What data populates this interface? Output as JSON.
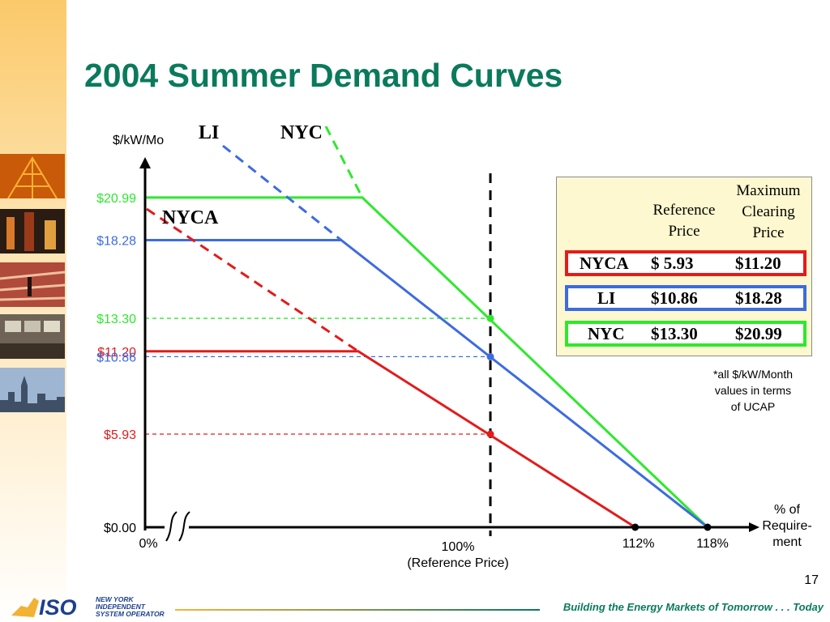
{
  "title": "2004 Summer Demand Curves",
  "page_number": "17",
  "footer": {
    "tagline": "Building the Energy Markets of Tomorrow . . . Today",
    "logo_text": "ISO",
    "logo_lines": [
      "NEW YORK",
      "INDEPENDENT",
      "SYSTEM OPERATOR"
    ]
  },
  "colors": {
    "NYCA": "#e31b1b",
    "LI": "#3d6be0",
    "NYC": "#2ee82e",
    "title": "#0a7a5c"
  },
  "chart_data": {
    "type": "line",
    "ylabel": "$/kW/Mo",
    "xlabel": "% of Require-ment",
    "xlabel_lines": [
      "% of",
      "Require-",
      "ment"
    ],
    "x_ticks": [
      {
        "x": 0,
        "label": "0%"
      },
      {
        "x": 100,
        "label": "100%"
      },
      {
        "x": 112,
        "label": "112%"
      },
      {
        "x": 118,
        "label": "118%"
      }
    ],
    "reference_line": {
      "x": 100,
      "caption": "(Reference Price)"
    },
    "y_ticks": [
      {
        "value": 20.99,
        "label": "$20.99",
        "series": "NYC"
      },
      {
        "value": 18.28,
        "label": "$18.28",
        "series": "LI"
      },
      {
        "value": 13.3,
        "label": "$13.30",
        "series": "NYC"
      },
      {
        "value": 11.2,
        "label": "$11.20",
        "series": "NYCA"
      },
      {
        "value": 10.86,
        "label": "$10.86",
        "series": "LI"
      },
      {
        "value": 5.93,
        "label": "$5.93",
        "series": "NYCA"
      },
      {
        "value": 0.0,
        "label": "$0.00",
        "series": null
      }
    ],
    "series": [
      {
        "name": "NYC",
        "cap": 20.99,
        "ref": 13.3,
        "zero_x": 118
      },
      {
        "name": "LI",
        "cap": 18.28,
        "ref": 10.86,
        "zero_x": 118
      },
      {
        "name": "NYCA",
        "cap": 11.2,
        "ref": 5.93,
        "zero_x": 112
      }
    ],
    "notes": [
      "all $/kW/Month values in terms of UCAP"
    ]
  },
  "table": {
    "headers": {
      "reference": [
        "Reference",
        "Price"
      ],
      "maximum": [
        "Maximum",
        "Clearing",
        "Price"
      ]
    },
    "rows": [
      {
        "zone": "NYCA",
        "reference": "$  5.93",
        "maximum": "$11.20"
      },
      {
        "zone": "LI",
        "reference": "$10.86",
        "maximum": "$18.28"
      },
      {
        "zone": "NYC",
        "reference": "$13.30",
        "maximum": "$20.99"
      }
    ]
  },
  "note_lines": [
    "*all $/kW/Month",
    "values in terms",
    "of UCAP"
  ]
}
